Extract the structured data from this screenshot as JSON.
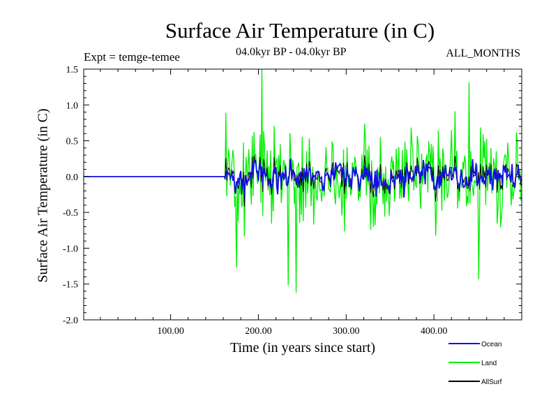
{
  "chart_data": {
    "type": "line",
    "title": "Surface Air Temperature (in C)",
    "expt": "Expt = temge-temee",
    "period": "04.0kyr BP - 04.0kyr BP",
    "months": "ALL_MONTHS",
    "xlabel": "Time (in years since start)",
    "ylabel": "Surface Air Temperature (in C)",
    "xlim": [
      1,
      500
    ],
    "ylim": [
      -2.0,
      1.5
    ],
    "xticks": [
      100,
      200,
      300,
      400
    ],
    "xtick_labels": [
      "100.00",
      "200.00",
      "300.00",
      "400.00"
    ],
    "yticks": [
      -2.0,
      -1.5,
      -1.0,
      -0.5,
      0.0,
      0.5,
      1.0,
      1.5
    ],
    "ytick_labels": [
      "-2.0",
      "-1.5",
      "-1.0",
      "-0.5",
      "0.0",
      "0.5",
      "1.0",
      "1.5"
    ],
    "anomaly_start_year": 162,
    "series": [
      {
        "name": "Ocean",
        "color": "#1010e6",
        "flat_value_before_start": 0.0,
        "approx_std": 0.12,
        "approx_range": [
          -0.45,
          0.5
        ]
      },
      {
        "name": "Land",
        "color": "#00ee00",
        "flat_value_before_start": 0.0,
        "approx_std": 0.45,
        "approx_range": [
          -1.6,
          1.5
        ]
      },
      {
        "name": "AllSurf",
        "color": "#000000",
        "flat_value_before_start": 0.0,
        "approx_std": 0.15,
        "approx_range": [
          -0.5,
          0.5
        ]
      }
    ],
    "legend": [
      "Ocean",
      "Land",
      "AllSurf"
    ]
  }
}
